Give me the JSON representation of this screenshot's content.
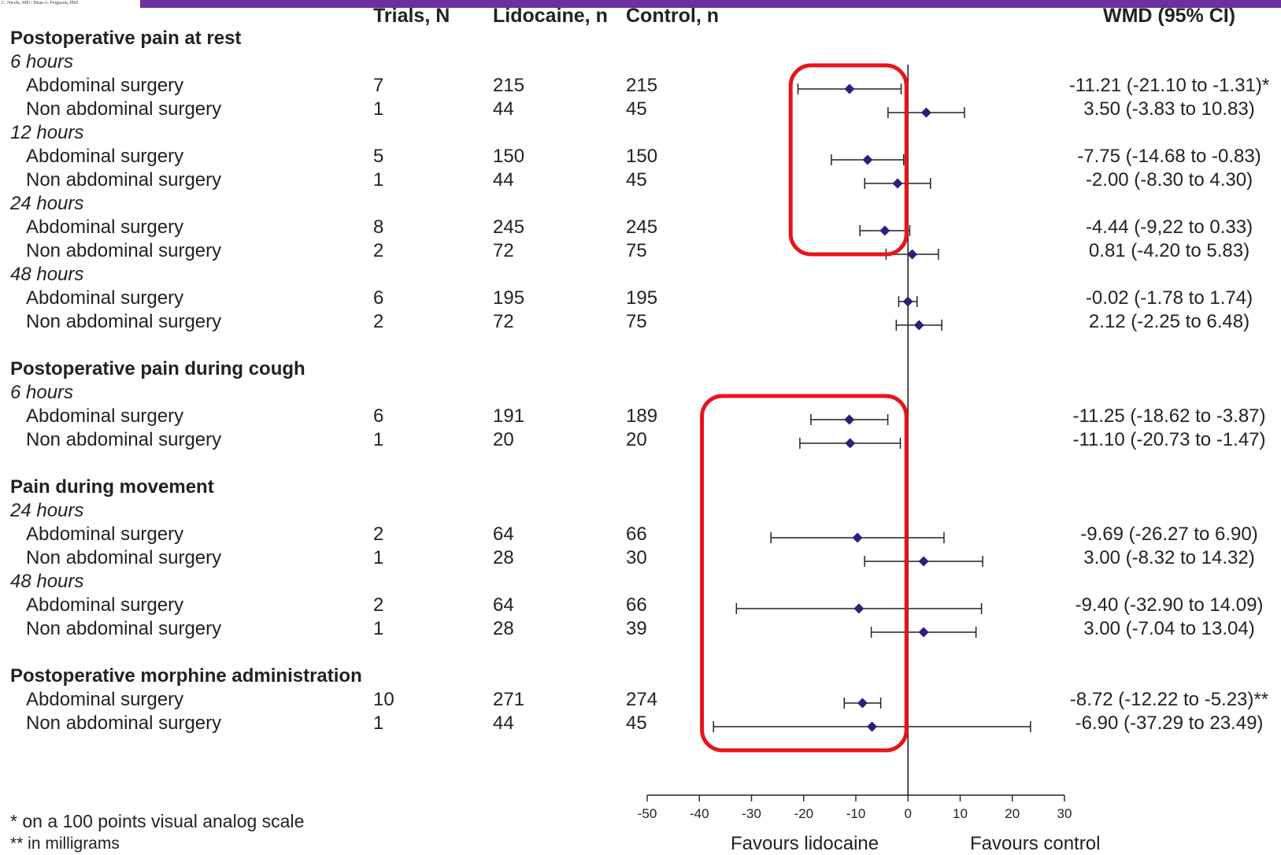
{
  "header_credit": "C. Nicole, MD / Dean A. Ferguson, PhD",
  "columns": {
    "trials": "Trials, N",
    "lidocaine": "Lidocaine, n",
    "control": "Control, n",
    "wmd": "WMD (95% CI)"
  },
  "rows": [
    {
      "kind": "section",
      "label": "Postoperative pain at rest"
    },
    {
      "kind": "time",
      "label": "6 hours"
    },
    {
      "kind": "data",
      "label": "Abdominal surgery",
      "trials": "7",
      "lido": "215",
      "ctrl": "215",
      "wmd": "-11.21 (-21.10 to -1.31)*"
    },
    {
      "kind": "data",
      "label": "Non abdominal surgery",
      "trials": "1",
      "lido": "44",
      "ctrl": "45",
      "wmd": "3.50 (-3.83 to 10.83)"
    },
    {
      "kind": "time",
      "label": "12 hours"
    },
    {
      "kind": "data",
      "label": "Abdominal surgery",
      "trials": "5",
      "lido": "150",
      "ctrl": "150",
      "wmd": "-7.75 (-14.68 to -0.83)"
    },
    {
      "kind": "data",
      "label": "Non abdominal surgery",
      "trials": "1",
      "lido": "44",
      "ctrl": "45",
      "wmd": "-2.00 (-8.30 to 4.30)"
    },
    {
      "kind": "time",
      "label": "24 hours"
    },
    {
      "kind": "data",
      "label": "Abdominal surgery",
      "trials": "8",
      "lido": "245",
      "ctrl": "245",
      "wmd": "-4.44 (-9,22 to 0.33)"
    },
    {
      "kind": "data",
      "label": "Non abdominal surgery",
      "trials": "2",
      "lido": "72",
      "ctrl": "75",
      "wmd": "0.81 (-4.20 to 5.83)"
    },
    {
      "kind": "time",
      "label": "48 hours"
    },
    {
      "kind": "data",
      "label": "Abdominal surgery",
      "trials": "6",
      "lido": "195",
      "ctrl": "195",
      "wmd": "-0.02 (-1.78 to 1.74)"
    },
    {
      "kind": "data",
      "label": "Non abdominal surgery",
      "trials": "2",
      "lido": "72",
      "ctrl": "75",
      "wmd": "2.12 (-2.25 to 6.48)"
    },
    {
      "kind": "section",
      "label": "Postoperative pain during cough"
    },
    {
      "kind": "time",
      "label": "6 hours"
    },
    {
      "kind": "data",
      "label": "Abdominal surgery",
      "trials": "6",
      "lido": "191",
      "ctrl": "189",
      "wmd": "-11.25 (-18.62 to -3.87)"
    },
    {
      "kind": "data",
      "label": "Non abdominal surgery",
      "trials": "1",
      "lido": "20",
      "ctrl": "20",
      "wmd": "-11.10 (-20.73 to -1.47)"
    },
    {
      "kind": "section",
      "label": "Pain during movement"
    },
    {
      "kind": "time",
      "label": "24 hours"
    },
    {
      "kind": "data",
      "label": "Abdominal surgery",
      "trials": "2",
      "lido": "64",
      "ctrl": "66",
      "wmd": "-9.69 (-26.27 to 6.90)"
    },
    {
      "kind": "data",
      "label": "Non abdominal surgery",
      "trials": "1",
      "lido": "28",
      "ctrl": "30",
      "wmd": "3.00 (-8.32 to 14.32)"
    },
    {
      "kind": "time",
      "label": "48 hours"
    },
    {
      "kind": "data",
      "label": "Abdominal surgery",
      "trials": "2",
      "lido": "64",
      "ctrl": "66",
      "wmd": "-9.40 (-32.90 to 14.09)"
    },
    {
      "kind": "data",
      "label": "Non abdominal surgery",
      "trials": "1",
      "lido": "28",
      "ctrl": "39",
      "wmd": "3.00 (-7.04 to 13.04)"
    },
    {
      "kind": "section",
      "label": "Postoperative morphine administration"
    },
    {
      "kind": "data",
      "label": "Abdominal surgery",
      "trials": "10",
      "lido": "271",
      "ctrl": "274",
      "wmd": "-8.72 (-12.22 to -5.23)**"
    },
    {
      "kind": "data",
      "label": "Non abdominal surgery",
      "trials": "1",
      "lido": "44",
      "ctrl": "45",
      "wmd": "-6.90 (-37.29 to 23.49)"
    }
  ],
  "footnotes": [
    "* on a 100 points visual analog scale",
    "** in milligrams"
  ],
  "favours": {
    "left": "Favours lidocaine",
    "right": "Favours control"
  },
  "colors": {
    "top_bar": "#6b2fa0",
    "marker": "#2e1f7a",
    "highlight": "#e8141b",
    "line": "#222222"
  },
  "chart_data": {
    "type": "forest",
    "x_axis": {
      "range": [
        -50,
        30
      ],
      "ticks": [
        -50,
        -40,
        -30,
        -20,
        -10,
        0,
        10,
        20,
        30
      ],
      "reference_line": 0
    },
    "estimates": [
      {
        "row": 2,
        "point": -11.21,
        "lower": -21.1,
        "upper": -1.31
      },
      {
        "row": 3,
        "point": 3.5,
        "lower": -3.83,
        "upper": 10.83
      },
      {
        "row": 5,
        "point": -7.75,
        "lower": -14.68,
        "upper": -0.83
      },
      {
        "row": 6,
        "point": -2.0,
        "lower": -8.3,
        "upper": 4.3
      },
      {
        "row": 8,
        "point": -4.44,
        "lower": -9.22,
        "upper": 0.33
      },
      {
        "row": 9,
        "point": 0.81,
        "lower": -4.2,
        "upper": 5.83
      },
      {
        "row": 11,
        "point": -0.02,
        "lower": -1.78,
        "upper": 1.74
      },
      {
        "row": 12,
        "point": 2.12,
        "lower": -2.25,
        "upper": 6.48
      },
      {
        "row": 15,
        "point": -11.25,
        "lower": -18.62,
        "upper": -3.87
      },
      {
        "row": 16,
        "point": -11.1,
        "lower": -20.73,
        "upper": -1.47
      },
      {
        "row": 19,
        "point": -9.69,
        "lower": -26.27,
        "upper": 6.9
      },
      {
        "row": 20,
        "point": 3.0,
        "lower": -8.32,
        "upper": 14.32
      },
      {
        "row": 22,
        "point": -9.4,
        "lower": -32.9,
        "upper": 14.09
      },
      {
        "row": 23,
        "point": 3.0,
        "lower": -7.04,
        "upper": 13.04
      },
      {
        "row": 25,
        "point": -8.72,
        "lower": -12.22,
        "upper": -5.23
      },
      {
        "row": 26,
        "point": -6.9,
        "lower": -37.29,
        "upper": 23.49
      }
    ],
    "highlight_boxes": [
      {
        "rows": [
          2,
          8
        ],
        "x_range": [
          -22.5,
          -0.3
        ]
      },
      {
        "rows": [
          15,
          26
        ],
        "x_range": [
          -39.5,
          -0.3
        ]
      }
    ]
  }
}
